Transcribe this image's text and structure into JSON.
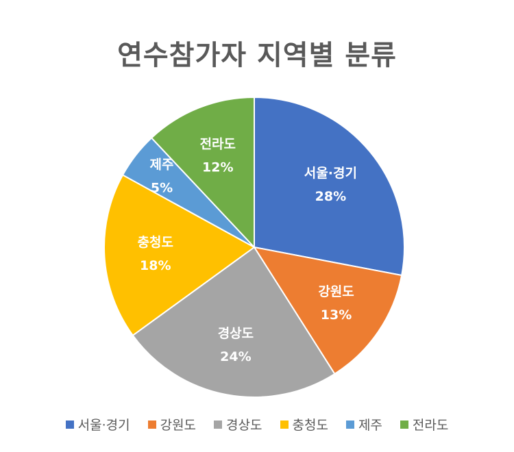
{
  "chart_data": {
    "type": "pie",
    "title": "연수참가자 지역별 분류",
    "categories": [
      "서울·경기",
      "강원도",
      "경상도",
      "충청도",
      "제주",
      "전라도"
    ],
    "values": [
      28,
      13,
      24,
      18,
      5,
      12
    ],
    "value_labels": [
      "28%",
      "13%",
      "24%",
      "18%",
      "5%",
      "12%"
    ],
    "colors": [
      "#4472C4",
      "#ED7D31",
      "#A5A5A5",
      "#FFC000",
      "#5B9BD5",
      "#70AD47"
    ],
    "legend_position": "bottom",
    "data_labels": "inside"
  }
}
